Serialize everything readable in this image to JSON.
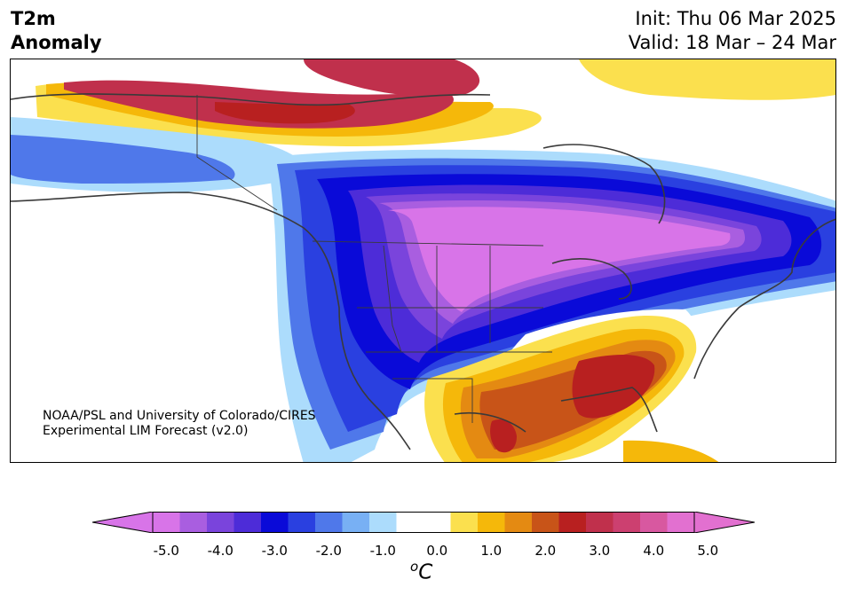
{
  "title": {
    "left_line1": "T2m",
    "left_line2": "Anomaly",
    "init": "Init: Thu 06 Mar 2025",
    "valid": "Valid: 18 Mar – 24 Mar"
  },
  "credit": {
    "line1": "NOAA/PSL and University of Colorado/CIRES",
    "line2": "Experimental LIM Forecast (v2.0)"
  },
  "colorbar": {
    "unit_base": "C",
    "unit_sup": "o",
    "tick_labels": [
      "-5.0",
      "-4.0",
      "-3.0",
      "-2.0",
      "-1.0",
      "0.0",
      "1.0",
      "2.0",
      "3.0",
      "4.0",
      "5.0"
    ],
    "colors": [
      "#d874e8",
      "#a95ee0",
      "#7a44dc",
      "#4d2cd8",
      "#0a0ad8",
      "#2a40e0",
      "#4f78ea",
      "#78b0f4",
      "#acdcfc",
      "#ffffff",
      "#ffffff",
      "#fbe04e",
      "#f5b80a",
      "#e48a12",
      "#c85418",
      "#b82020",
      "#c0304c",
      "#cc4070",
      "#d858a0",
      "#e270d0"
    ],
    "extend_low_color": "#d874e8",
    "extend_high_color": "#e270d0"
  },
  "map": {
    "region": "North America",
    "variable": "2m temperature anomaly",
    "coastline_color": "#3a3a3a"
  }
}
